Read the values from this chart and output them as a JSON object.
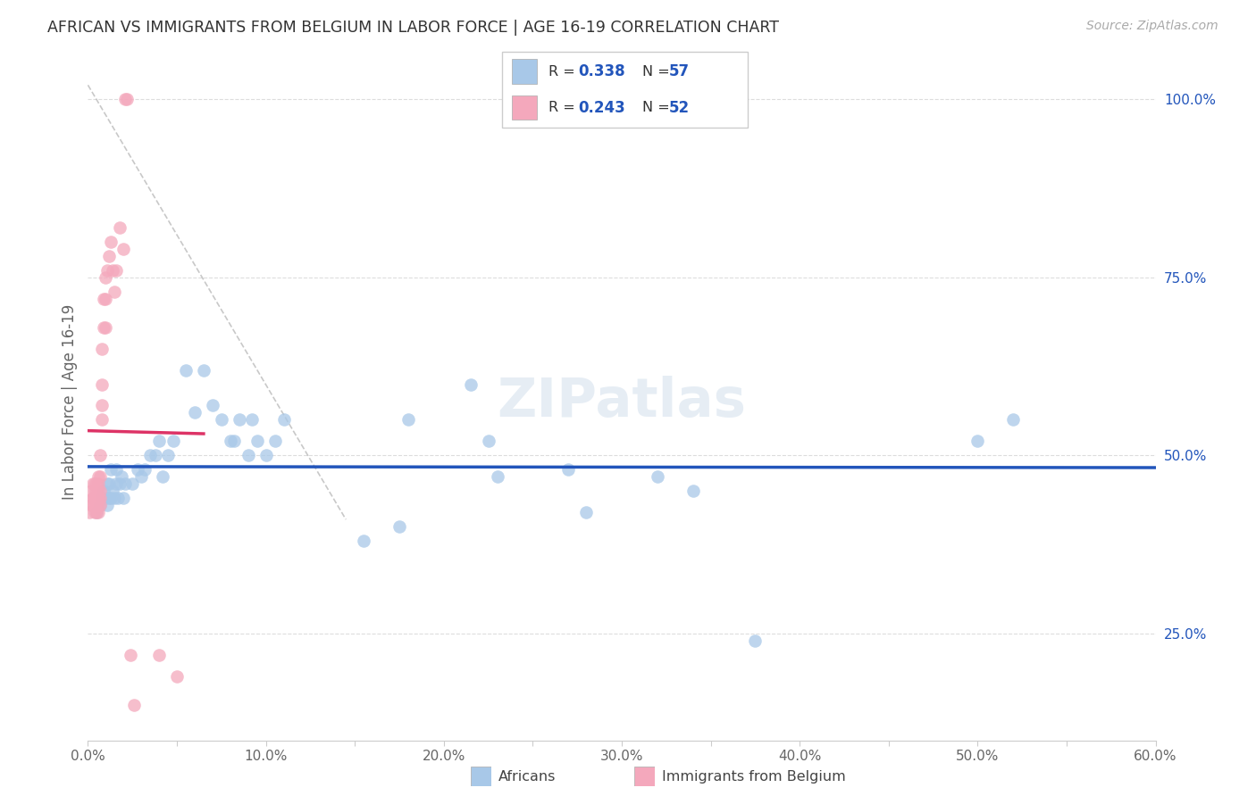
{
  "title": "AFRICAN VS IMMIGRANTS FROM BELGIUM IN LABOR FORCE | AGE 16-19 CORRELATION CHART",
  "source": "Source: ZipAtlas.com",
  "ylabel": "In Labor Force | Age 16-19",
  "xlim": [
    0.0,
    0.6
  ],
  "ylim": [
    0.1,
    1.05
  ],
  "xtick_labels": [
    "0.0%",
    "",
    "10.0%",
    "",
    "20.0%",
    "",
    "30.0%",
    "",
    "40.0%",
    "",
    "50.0%",
    "",
    "60.0%"
  ],
  "xtick_vals": [
    0.0,
    0.05,
    0.1,
    0.15,
    0.2,
    0.25,
    0.3,
    0.35,
    0.4,
    0.45,
    0.5,
    0.55,
    0.6
  ],
  "ytick_labels": [
    "25.0%",
    "50.0%",
    "75.0%",
    "100.0%"
  ],
  "ytick_vals": [
    0.25,
    0.5,
    0.75,
    1.0
  ],
  "blue_R": "0.338",
  "blue_N": "57",
  "pink_R": "0.243",
  "pink_N": "52",
  "blue_color": "#a8c8e8",
  "pink_color": "#f4a8bc",
  "blue_line_color": "#2255bb",
  "pink_line_color": "#dd3366",
  "watermark": "ZIPatlas",
  "blue_scatter_x": [
    0.005,
    0.007,
    0.008,
    0.009,
    0.01,
    0.011,
    0.011,
    0.012,
    0.012,
    0.013,
    0.013,
    0.014,
    0.015,
    0.016,
    0.016,
    0.017,
    0.018,
    0.019,
    0.02,
    0.021,
    0.025,
    0.028,
    0.03,
    0.032,
    0.035,
    0.038,
    0.04,
    0.042,
    0.045,
    0.048,
    0.055,
    0.06,
    0.065,
    0.07,
    0.075,
    0.08,
    0.082,
    0.085,
    0.09,
    0.092,
    0.095,
    0.1,
    0.105,
    0.11,
    0.155,
    0.175,
    0.18,
    0.215,
    0.225,
    0.23,
    0.27,
    0.28,
    0.32,
    0.34,
    0.375,
    0.5,
    0.52
  ],
  "blue_scatter_y": [
    0.42,
    0.43,
    0.44,
    0.45,
    0.44,
    0.43,
    0.46,
    0.44,
    0.46,
    0.44,
    0.48,
    0.45,
    0.44,
    0.46,
    0.48,
    0.44,
    0.46,
    0.47,
    0.44,
    0.46,
    0.46,
    0.48,
    0.47,
    0.48,
    0.5,
    0.5,
    0.52,
    0.47,
    0.5,
    0.52,
    0.62,
    0.56,
    0.62,
    0.57,
    0.55,
    0.52,
    0.52,
    0.55,
    0.5,
    0.55,
    0.52,
    0.5,
    0.52,
    0.55,
    0.38,
    0.4,
    0.55,
    0.6,
    0.52,
    0.47,
    0.48,
    0.42,
    0.47,
    0.45,
    0.24,
    0.52,
    0.55
  ],
  "pink_scatter_x": [
    0.001,
    0.002,
    0.002,
    0.003,
    0.003,
    0.003,
    0.003,
    0.004,
    0.004,
    0.004,
    0.004,
    0.004,
    0.005,
    0.005,
    0.005,
    0.005,
    0.005,
    0.006,
    0.006,
    0.006,
    0.006,
    0.006,
    0.006,
    0.006,
    0.007,
    0.007,
    0.007,
    0.007,
    0.007,
    0.008,
    0.008,
    0.008,
    0.008,
    0.009,
    0.009,
    0.01,
    0.01,
    0.01,
    0.011,
    0.012,
    0.013,
    0.014,
    0.015,
    0.016,
    0.018,
    0.02,
    0.021,
    0.022,
    0.024,
    0.026,
    0.04,
    0.05
  ],
  "pink_scatter_y": [
    0.42,
    0.43,
    0.45,
    0.44,
    0.43,
    0.46,
    0.44,
    0.42,
    0.43,
    0.45,
    0.46,
    0.44,
    0.42,
    0.44,
    0.43,
    0.46,
    0.45,
    0.42,
    0.44,
    0.43,
    0.45,
    0.47,
    0.44,
    0.46,
    0.43,
    0.45,
    0.47,
    0.5,
    0.44,
    0.55,
    0.57,
    0.6,
    0.65,
    0.68,
    0.72,
    0.75,
    0.68,
    0.72,
    0.76,
    0.78,
    0.8,
    0.76,
    0.73,
    0.76,
    0.82,
    0.79,
    1.0,
    1.0,
    0.22,
    0.15,
    0.22,
    0.19
  ],
  "diag_line_x": [
    0.0,
    0.145
  ],
  "diag_line_y": [
    1.02,
    0.41
  ]
}
